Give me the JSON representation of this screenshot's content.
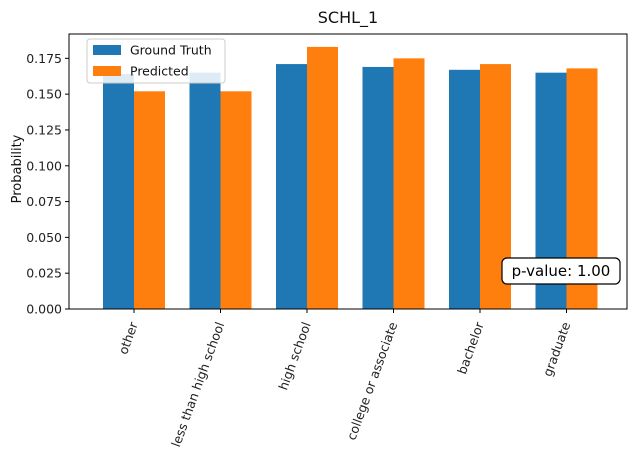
{
  "chart_data": {
    "type": "bar",
    "title": "SCHL_1",
    "xlabel": "",
    "ylabel": "Probability",
    "categories": [
      "other",
      "less than high school",
      "high school",
      "college or associate",
      "bachelor",
      "graduate"
    ],
    "series": [
      {
        "name": "Ground Truth",
        "color": "#1f77b4",
        "values": [
          0.164,
          0.165,
          0.171,
          0.169,
          0.167,
          0.165
        ]
      },
      {
        "name": "Predicted",
        "color": "#ff7f0e",
        "values": [
          0.152,
          0.152,
          0.183,
          0.175,
          0.171,
          0.168
        ]
      }
    ],
    "ylim": [
      0,
      0.192
    ],
    "yticks": [
      "0.000",
      "0.025",
      "0.050",
      "0.075",
      "0.100",
      "0.125",
      "0.150",
      "0.175"
    ],
    "ytick_values": [
      0,
      0.025,
      0.05,
      0.075,
      0.1,
      0.125,
      0.15,
      0.175
    ],
    "grid": false,
    "legend_position": "top-left",
    "annotation": "p-value: 1.00"
  }
}
